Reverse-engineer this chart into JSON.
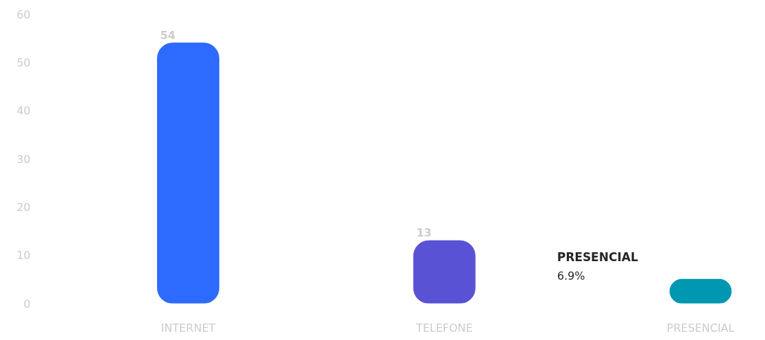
{
  "chart_data": {
    "type": "bar",
    "categories": [
      "INTERNET",
      "TELEFONE",
      "PRESENCIAL"
    ],
    "values": [
      54,
      13,
      5
    ],
    "colors": [
      "#2d6bff",
      "#5a52d5",
      "#0097b2"
    ],
    "value_labels": [
      "54",
      "13",
      null
    ],
    "ylim": [
      0,
      60
    ],
    "yticks": [
      0,
      10,
      20,
      30,
      40,
      50,
      60
    ],
    "grid": false,
    "annotations": [
      "PRESENCIAL",
      "6.9%"
    ]
  }
}
